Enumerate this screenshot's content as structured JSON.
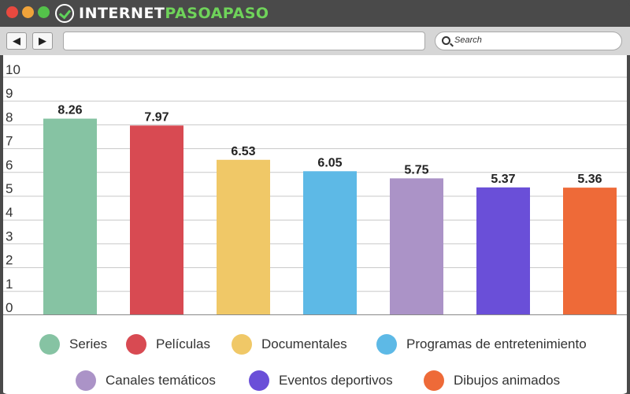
{
  "window": {
    "logo_text_white": "INTERNET",
    "logo_text_green": "PASOAPASO",
    "nav": {
      "back_glyph": "◀",
      "forward_glyph": "▶"
    },
    "address_value": "",
    "search_placeholder": "Search"
  },
  "chart_data": {
    "type": "bar",
    "title": "",
    "xlabel": "",
    "ylabel": "",
    "ylim": [
      0,
      10
    ],
    "yticks": [
      0,
      1,
      2,
      3,
      4,
      5,
      6,
      7,
      8,
      9,
      10
    ],
    "grid": true,
    "legend_position": "bottom",
    "categories": [
      "Series",
      "Películas",
      "Documentales",
      "Programas de entretenimiento",
      "Canales temáticos",
      "Eventos deportivos",
      "Dibujos animados"
    ],
    "values": [
      8.26,
      7.97,
      6.53,
      6.05,
      5.75,
      5.37,
      5.36
    ],
    "value_labels": [
      "8.26",
      "7.97",
      "6.53",
      "6.05",
      "5.75",
      "5.37",
      "5.36"
    ],
    "colors": [
      "#86c3a3",
      "#d84a52",
      "#f0c867",
      "#5db9e6",
      "#ab93c7",
      "#6a4fd8",
      "#ee6a38"
    ]
  }
}
